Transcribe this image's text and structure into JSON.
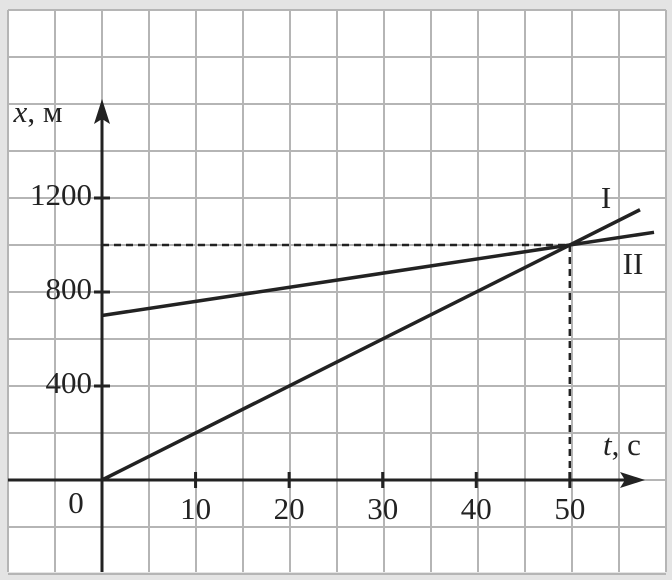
{
  "chart_data": {
    "type": "line",
    "xlabel": {
      "symbol": "t",
      "unit": ", с"
    },
    "ylabel": {
      "symbol": "x",
      "unit": ", м"
    },
    "origin": 0,
    "xlim": [
      0,
      57.5
    ],
    "ylim": [
      0,
      1600
    ],
    "xticks": [
      10,
      20,
      30,
      40,
      50
    ],
    "yticks": [
      400,
      800,
      1200
    ],
    "series": [
      {
        "name": "I",
        "color": "#222222",
        "x": [
          0,
          57.5
        ],
        "values": [
          0,
          1150
        ]
      },
      {
        "name": "II",
        "color": "#222222",
        "x": [
          0,
          59
        ],
        "values": [
          700,
          1054
        ]
      }
    ],
    "guides": [
      {
        "t": 50,
        "x": 1000
      }
    ],
    "grid": true
  }
}
